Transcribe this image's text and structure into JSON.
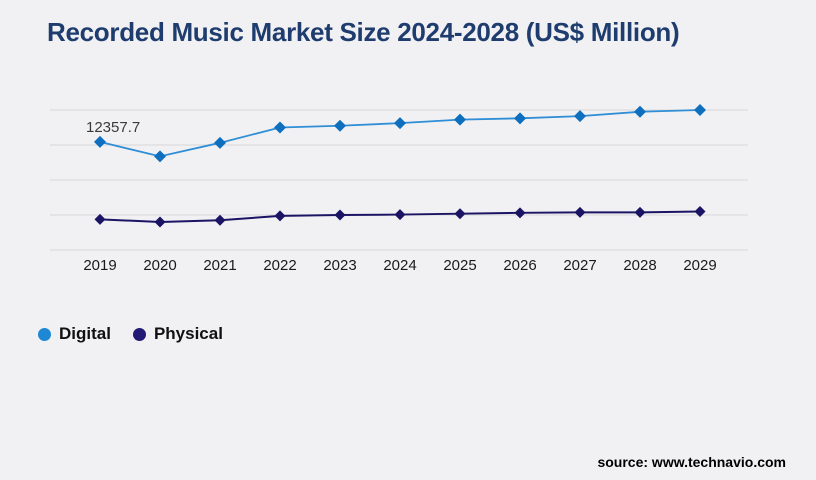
{
  "page": {
    "background": "#f1f1f3",
    "source": "source: www.technavio.com"
  },
  "chart_data": {
    "type": "line",
    "title": "Recorded Music Market Size 2024-2028 (US$ Million)",
    "title_color": "#1e3c6e",
    "categories": [
      "2019",
      "2020",
      "2021",
      "2022",
      "2023",
      "2024",
      "2025",
      "2026",
      "2027",
      "2028",
      "2029"
    ],
    "series": [
      {
        "name": "Digital",
        "line_color": "#2f8ed5",
        "marker_color": "#0e6fbf",
        "legend_color": "#1e88d4",
        "values": [
          12357.7,
          10700,
          12250,
          14000,
          14200,
          14500,
          14900,
          15050,
          15300,
          15800,
          16000
        ]
      },
      {
        "name": "Physical",
        "line_color": "#1b1464",
        "marker_color": "#1b1464",
        "legend_color": "#221a75",
        "values": [
          3500,
          3200,
          3400,
          3900,
          4000,
          4050,
          4150,
          4250,
          4300,
          4300,
          4400
        ]
      }
    ],
    "data_label": {
      "series": "Digital",
      "category": "2019",
      "text": "12357.7"
    },
    "ylim": [
      0,
      16000
    ],
    "gridline_count": 5,
    "gridline_color": "#d8d8d9",
    "x_axis_text_color": "#1a1a1a",
    "legend_position": "bottom-left",
    "grid": "horizontal-only"
  }
}
